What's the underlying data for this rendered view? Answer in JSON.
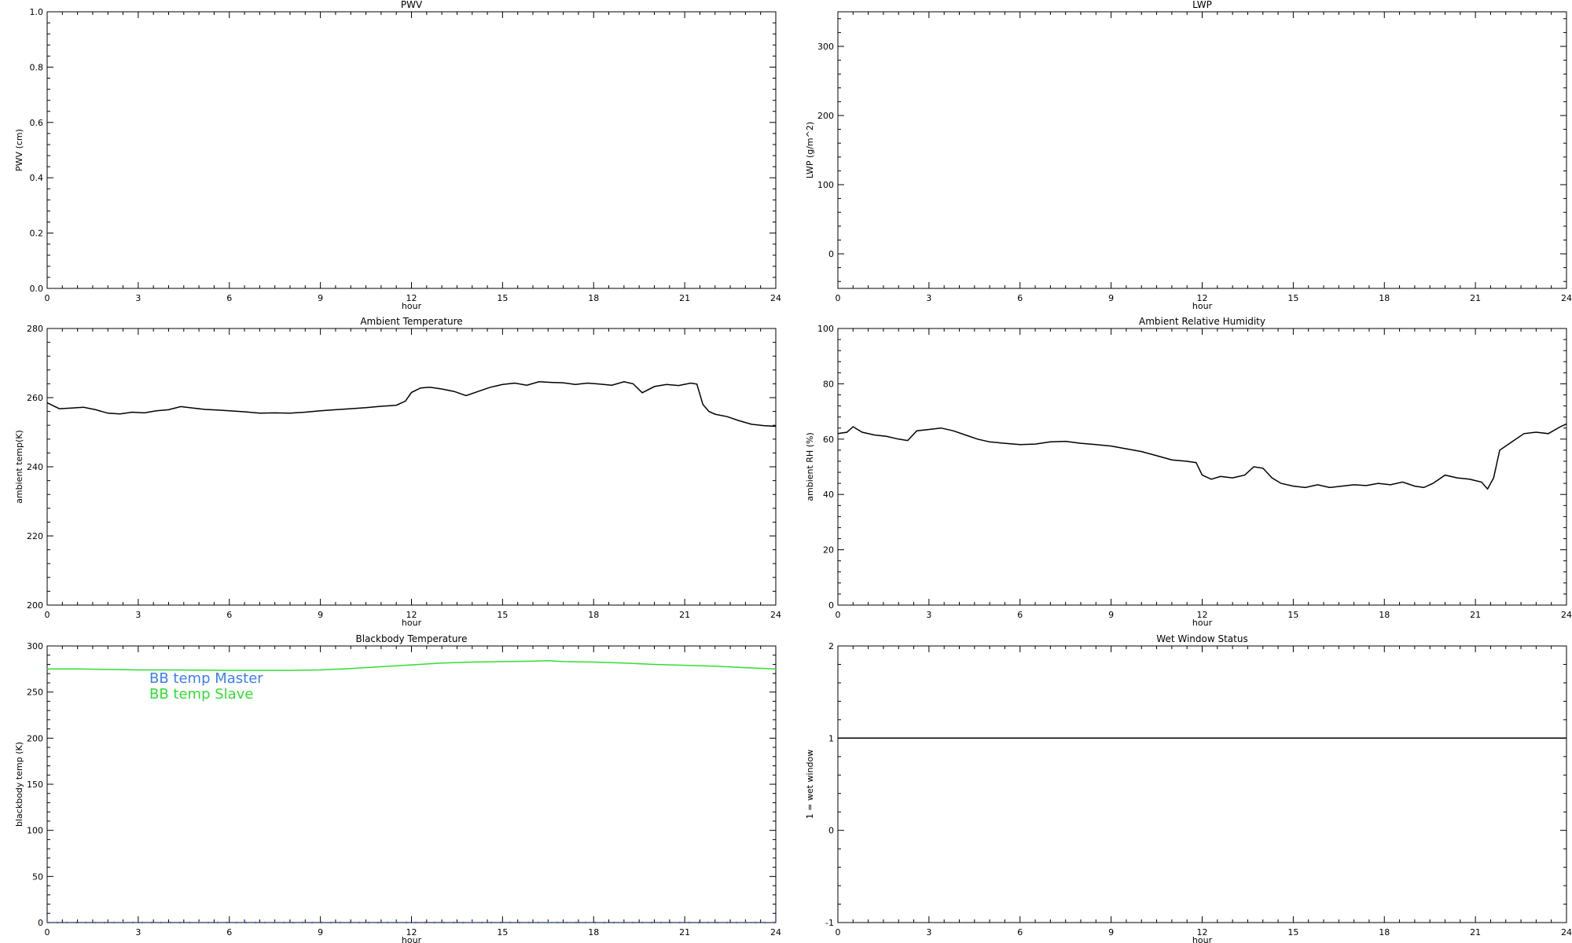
{
  "chart_data": [
    {
      "type": "line",
      "title": "PWV",
      "xlabel": "hour",
      "ylabel": "PWV (cm)",
      "xlim": [
        0,
        24
      ],
      "ylim": [
        0,
        1
      ],
      "xticks": [
        0,
        3,
        6,
        9,
        12,
        15,
        18,
        21,
        24
      ],
      "yticks": [
        0.0,
        0.2,
        0.4,
        0.6,
        0.8,
        1.0
      ],
      "ytick_labels": [
        "0.0",
        "0.2",
        "0.4",
        "0.6",
        "0.8",
        "1.0"
      ],
      "series": []
    },
    {
      "type": "line",
      "title": "LWP",
      "xlabel": "hour",
      "ylabel": "LWP (g/m^2)",
      "xlim": [
        0,
        24
      ],
      "ylim": [
        -50,
        350
      ],
      "xticks": [
        0,
        3,
        6,
        9,
        12,
        15,
        18,
        21,
        24
      ],
      "yticks": [
        0,
        100,
        200,
        300
      ],
      "ytick_labels": [
        "0",
        "100",
        "200",
        "300"
      ],
      "series": []
    },
    {
      "type": "line",
      "title": "Ambient Temperature",
      "xlabel": "hour",
      "ylabel": "ambient temp(K)",
      "xlim": [
        0,
        24
      ],
      "ylim": [
        200,
        280
      ],
      "xticks": [
        0,
        3,
        6,
        9,
        12,
        15,
        18,
        21,
        24
      ],
      "yticks": [
        200,
        220,
        240,
        260,
        280
      ],
      "ytick_labels": [
        "200",
        "220",
        "240",
        "260",
        "280"
      ],
      "series": [
        {
          "color": "#000000",
          "x": [
            0,
            0.4,
            0.8,
            1.2,
            1.6,
            2.0,
            2.4,
            2.8,
            3.2,
            3.6,
            4.0,
            4.4,
            4.8,
            5.2,
            5.6,
            6.0,
            6.5,
            7.0,
            7.5,
            8.0,
            8.5,
            9.0,
            9.5,
            10.0,
            10.5,
            11.0,
            11.5,
            11.8,
            12.0,
            12.3,
            12.6,
            13.0,
            13.4,
            13.8,
            14.2,
            14.6,
            15.0,
            15.4,
            15.8,
            16.2,
            16.6,
            17.0,
            17.4,
            17.8,
            18.2,
            18.6,
            19.0,
            19.3,
            19.6,
            20.0,
            20.4,
            20.8,
            21.2,
            21.4,
            21.6,
            21.8,
            22.0,
            22.4,
            22.8,
            23.2,
            23.6,
            24.0
          ],
          "y": [
            258.5,
            256.8,
            257.0,
            257.2,
            256.5,
            255.5,
            255.3,
            255.8,
            255.6,
            256.2,
            256.5,
            257.4,
            257.0,
            256.6,
            256.4,
            256.2,
            255.9,
            255.5,
            255.6,
            255.5,
            255.8,
            256.2,
            256.5,
            256.8,
            257.1,
            257.5,
            257.8,
            259.0,
            261.5,
            262.8,
            263.0,
            262.5,
            261.8,
            260.6,
            261.8,
            263.0,
            263.8,
            264.2,
            263.6,
            264.6,
            264.4,
            264.3,
            263.8,
            264.2,
            263.9,
            263.6,
            264.6,
            264.0,
            261.4,
            263.2,
            263.8,
            263.5,
            264.2,
            263.9,
            258.0,
            256.0,
            255.2,
            254.5,
            253.3,
            252.3,
            251.9,
            251.7
          ]
        }
      ]
    },
    {
      "type": "line",
      "title": "Ambient Relative Humidity",
      "xlabel": "hour",
      "ylabel": "ambient RH (%)",
      "xlim": [
        0,
        24
      ],
      "ylim": [
        0,
        100
      ],
      "xticks": [
        0,
        3,
        6,
        9,
        12,
        15,
        18,
        21,
        24
      ],
      "yticks": [
        0,
        20,
        40,
        60,
        80,
        100
      ],
      "ytick_labels": [
        "0",
        "20",
        "40",
        "60",
        "80",
        "100"
      ],
      "series": [
        {
          "color": "#000000",
          "x": [
            0,
            0.3,
            0.5,
            0.8,
            1.2,
            1.6,
            2.0,
            2.3,
            2.6,
            3.0,
            3.4,
            3.8,
            4.2,
            4.6,
            5.0,
            5.5,
            6.0,
            6.5,
            7.0,
            7.5,
            8.0,
            8.5,
            9.0,
            9.5,
            10.0,
            10.5,
            11.0,
            11.5,
            11.8,
            12.0,
            12.3,
            12.6,
            13.0,
            13.4,
            13.7,
            14.0,
            14.3,
            14.6,
            15.0,
            15.4,
            15.8,
            16.2,
            16.6,
            17.0,
            17.4,
            17.8,
            18.2,
            18.6,
            19.0,
            19.3,
            19.6,
            20.0,
            20.4,
            20.8,
            21.2,
            21.4,
            21.6,
            21.8,
            22.2,
            22.6,
            23.0,
            23.4,
            23.8,
            24.0
          ],
          "y": [
            62.0,
            62.5,
            64.5,
            62.5,
            61.5,
            61.0,
            60.0,
            59.5,
            63.0,
            63.5,
            64.0,
            63.0,
            61.5,
            60.0,
            59.0,
            58.5,
            58.0,
            58.2,
            59.0,
            59.2,
            58.5,
            58.0,
            57.5,
            56.5,
            55.5,
            54.0,
            52.5,
            52.0,
            51.5,
            47.0,
            45.5,
            46.5,
            46.0,
            47.0,
            50.0,
            49.5,
            46.0,
            44.0,
            43.0,
            42.5,
            43.5,
            42.5,
            43.0,
            43.5,
            43.2,
            44.0,
            43.5,
            44.5,
            43.0,
            42.5,
            44.0,
            47.0,
            46.0,
            45.5,
            44.5,
            42.0,
            46.0,
            56.0,
            59.0,
            62.0,
            62.5,
            62.0,
            64.5,
            65.5
          ]
        }
      ]
    },
    {
      "type": "line",
      "title": "Blackbody Temperature",
      "xlabel": "hour",
      "ylabel": "blackbody temp (K)",
      "xlim": [
        0,
        24
      ],
      "ylim": [
        0,
        300
      ],
      "xticks": [
        0,
        3,
        6,
        9,
        12,
        15,
        18,
        21,
        24
      ],
      "yticks": [
        0,
        50,
        100,
        150,
        200,
        250,
        300
      ],
      "ytick_labels": [
        "0",
        "50",
        "100",
        "150",
        "200",
        "250",
        "300"
      ],
      "legend": [
        "BB temp Master",
        "BB temp Slave"
      ],
      "series": [
        {
          "name": "BB temp Master",
          "color": "#3b7ff0",
          "style": "dotted",
          "x": [
            0,
            24
          ],
          "y": [
            0,
            0
          ]
        },
        {
          "name": "BB temp Slave",
          "color": "#33dd33",
          "x": [
            0,
            1,
            2,
            3,
            4,
            5,
            6,
            7,
            8,
            9,
            10,
            11,
            12,
            13,
            14,
            15,
            16,
            16.5,
            17,
            18,
            19,
            20,
            21,
            22,
            23,
            24
          ],
          "y": [
            275,
            275,
            274.5,
            274,
            274,
            273.8,
            273.5,
            273.5,
            273.5,
            274,
            275.5,
            277.5,
            279.5,
            281.5,
            282.5,
            283,
            283.5,
            284,
            283,
            282.5,
            281.5,
            280,
            279,
            278,
            276.5,
            275
          ]
        }
      ]
    },
    {
      "type": "line",
      "title": "Wet Window Status",
      "xlabel": "hour",
      "ylabel": "1 = wet window",
      "xlim": [
        0,
        24
      ],
      "ylim": [
        -1,
        2
      ],
      "xticks": [
        0,
        3,
        6,
        9,
        12,
        15,
        18,
        21,
        24
      ],
      "yticks": [
        -1,
        0,
        1,
        2
      ],
      "ytick_labels": [
        "-1",
        "0",
        "1",
        "2"
      ],
      "series": [
        {
          "color": "#000000",
          "x": [
            0,
            24
          ],
          "y": [
            1,
            1
          ]
        }
      ]
    }
  ]
}
